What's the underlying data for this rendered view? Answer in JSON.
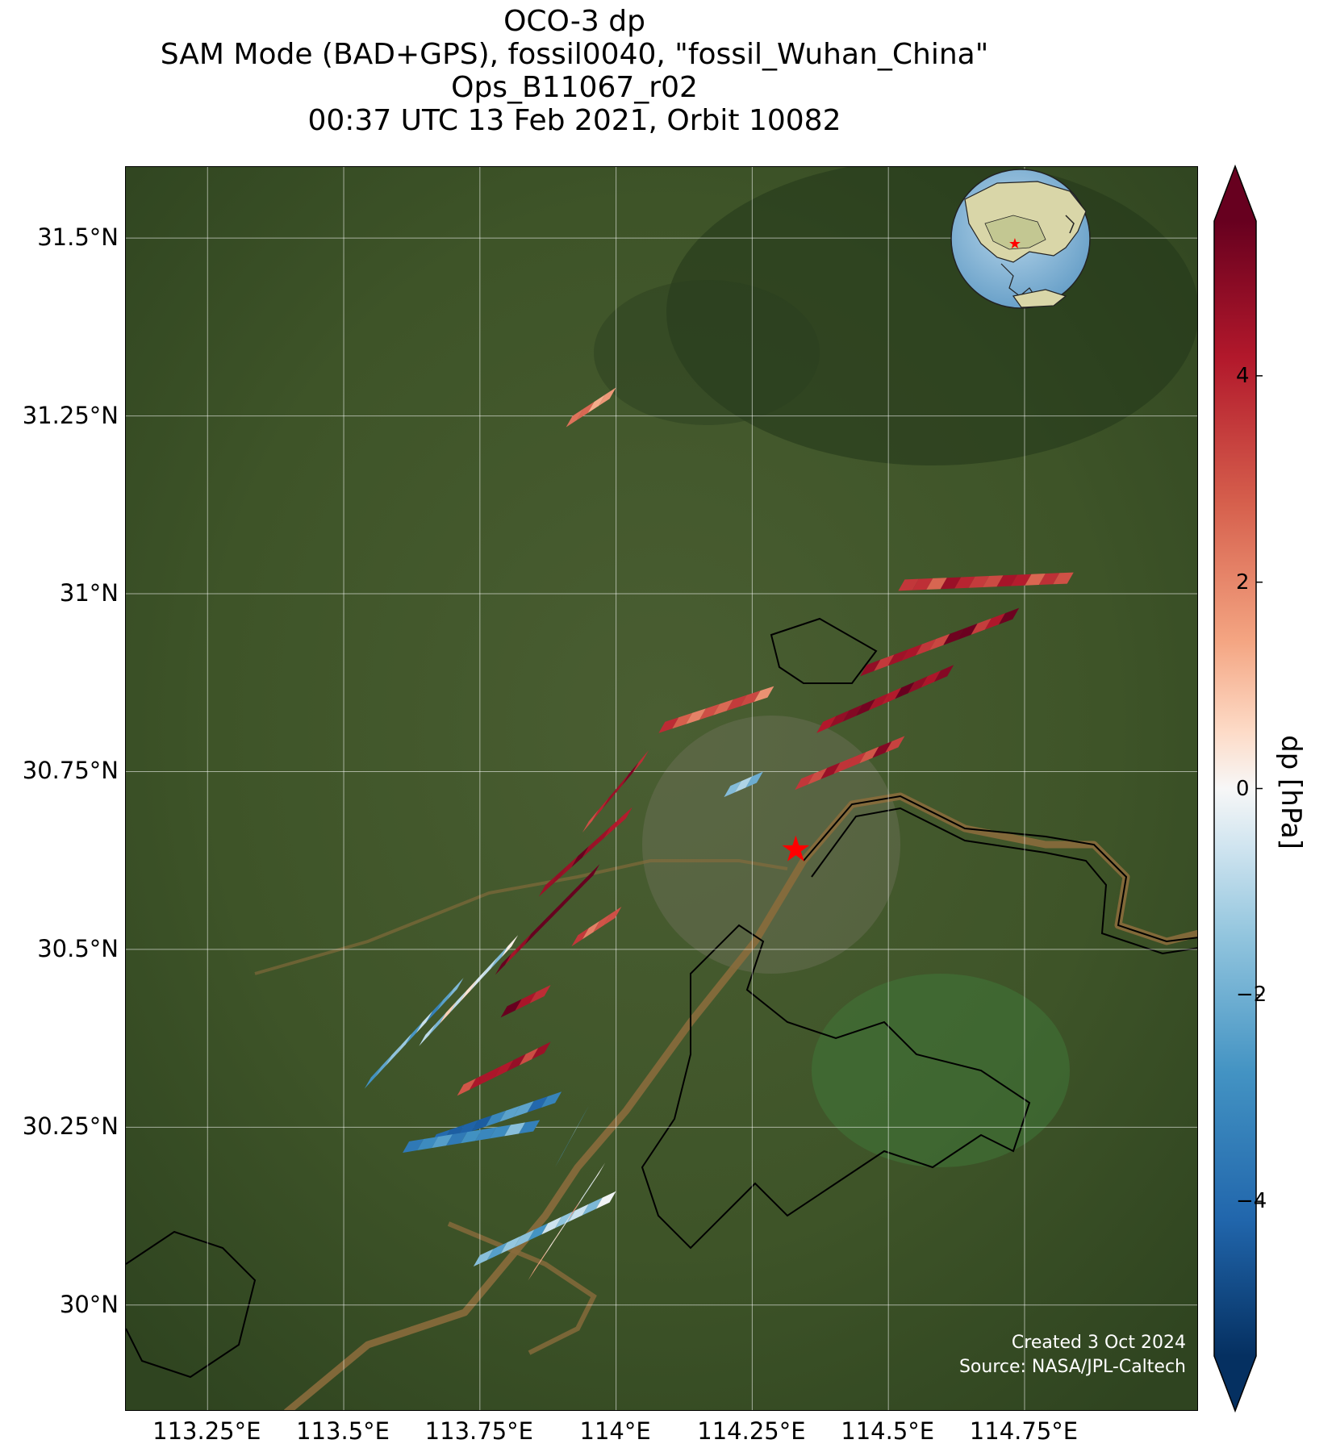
{
  "title": {
    "line1": "OCO-3 dp",
    "line2": "SAM Mode (BAD+GPS), fossil0040, \"fossil_Wuhan_China\"",
    "line3": "Ops_B11067_r02",
    "line4": "00:37 UTC 13 Feb 2021, Orbit 10082"
  },
  "map": {
    "lat_range": [
      29.85,
      31.6
    ],
    "lon_range": [
      113.1,
      115.07
    ],
    "lat_ticks": [
      {
        "value": 31.5,
        "label": "31.5°N"
      },
      {
        "value": 31.25,
        "label": "31.25°N"
      },
      {
        "value": 31.0,
        "label": "31°N"
      },
      {
        "value": 30.75,
        "label": "30.75°N"
      },
      {
        "value": 30.5,
        "label": "30.5°N"
      },
      {
        "value": 30.25,
        "label": "30.25°N"
      },
      {
        "value": 30.0,
        "label": "30°N"
      }
    ],
    "lon_ticks": [
      {
        "value": 113.25,
        "label": "113.25°E"
      },
      {
        "value": 113.5,
        "label": "113.5°E"
      },
      {
        "value": 113.75,
        "label": "113.75°E"
      },
      {
        "value": 114.0,
        "label": "114°E"
      },
      {
        "value": 114.25,
        "label": "114.25°E"
      },
      {
        "value": 114.5,
        "label": "114.5°E"
      },
      {
        "value": 114.75,
        "label": "114.75°E"
      }
    ],
    "target_marker": {
      "lon": 114.33,
      "lat": 30.64,
      "symbol": "star",
      "color": "#ff0000"
    },
    "background_color": "#3d5a2a",
    "coastline_color": "#000000",
    "inset_globe": {
      "center_region": "East Asia",
      "marker": "star",
      "marker_color": "#ff0000"
    },
    "credits": {
      "created": "Created 3 Oct 2024",
      "source": "Source: NASA/JPL-Caltech"
    }
  },
  "colorbar": {
    "label": "dp [hPa]",
    "colormap": "RdBu_r",
    "range": [
      -5.5,
      5.5
    ],
    "extend": "both",
    "ticks": [
      {
        "value": 4,
        "label": "4"
      },
      {
        "value": 2,
        "label": "2"
      },
      {
        "value": 0,
        "label": "0"
      },
      {
        "value": -2,
        "label": "−2"
      },
      {
        "value": -4,
        "label": "−4"
      }
    ]
  },
  "chart_data": {
    "type": "heatmap",
    "title": "OCO-3 dp",
    "xlabel": "",
    "ylabel": "",
    "variable": "dp",
    "units": "hPa",
    "grid": true,
    "swaths": [
      {
        "start_lon": 113.92,
        "start_lat": 31.25,
        "end_lon": 114.0,
        "end_lat": 31.29,
        "value": 2.2
      },
      {
        "start_lon": 114.53,
        "start_lat": 31.02,
        "end_lon": 114.84,
        "end_lat": 31.03,
        "value": 3.5
      },
      {
        "start_lon": 114.46,
        "start_lat": 30.9,
        "end_lon": 114.74,
        "end_lat": 30.98,
        "value": 4.2
      },
      {
        "start_lon": 114.38,
        "start_lat": 30.82,
        "end_lon": 114.62,
        "end_lat": 30.9,
        "value": 4.8
      },
      {
        "start_lon": 114.34,
        "start_lat": 30.74,
        "end_lon": 114.53,
        "end_lat": 30.8,
        "value": 3.8
      },
      {
        "start_lon": 114.09,
        "start_lat": 30.82,
        "end_lon": 114.29,
        "end_lat": 30.87,
        "value": 2.6
      },
      {
        "start_lon": 114.21,
        "start_lat": 30.73,
        "end_lon": 114.27,
        "end_lat": 30.75,
        "value": -0.8
      },
      {
        "start_lon": 113.95,
        "start_lat": 30.68,
        "end_lon": 114.06,
        "end_lat": 30.78,
        "value": 4.0
      },
      {
        "start_lon": 113.87,
        "start_lat": 30.59,
        "end_lon": 114.03,
        "end_lat": 30.7,
        "value": 4.6
      },
      {
        "start_lon": 113.79,
        "start_lat": 30.48,
        "end_lon": 113.97,
        "end_lat": 30.62,
        "value": 5.2
      },
      {
        "start_lon": 113.93,
        "start_lat": 30.52,
        "end_lon": 114.01,
        "end_lat": 30.56,
        "value": 3.2
      },
      {
        "start_lon": 113.55,
        "start_lat": 30.32,
        "end_lon": 113.72,
        "end_lat": 30.46,
        "value": -1.8
      },
      {
        "start_lon": 113.65,
        "start_lat": 30.38,
        "end_lon": 113.82,
        "end_lat": 30.52,
        "value": -0.6
      },
      {
        "start_lon": 113.8,
        "start_lat": 30.42,
        "end_lon": 113.88,
        "end_lat": 30.45,
        "value": 4.8
      },
      {
        "start_lon": 113.72,
        "start_lat": 30.31,
        "end_lon": 113.88,
        "end_lat": 30.37,
        "value": 3.6
      },
      {
        "start_lon": 113.67,
        "start_lat": 30.24,
        "end_lon": 113.9,
        "end_lat": 30.3,
        "value": -3.0
      },
      {
        "start_lon": 113.62,
        "start_lat": 30.23,
        "end_lon": 113.86,
        "end_lat": 30.26,
        "value": -2.2
      },
      {
        "start_lon": 113.9,
        "start_lat": 30.21,
        "end_lon": 113.95,
        "end_lat": 30.28,
        "value": -1.5
      },
      {
        "start_lon": 113.75,
        "start_lat": 30.07,
        "end_lon": 114.0,
        "end_lat": 30.16,
        "value": -1.2
      },
      {
        "start_lon": 113.85,
        "start_lat": 30.05,
        "end_lon": 113.98,
        "end_lat": 30.2,
        "value": 0.8
      }
    ]
  }
}
